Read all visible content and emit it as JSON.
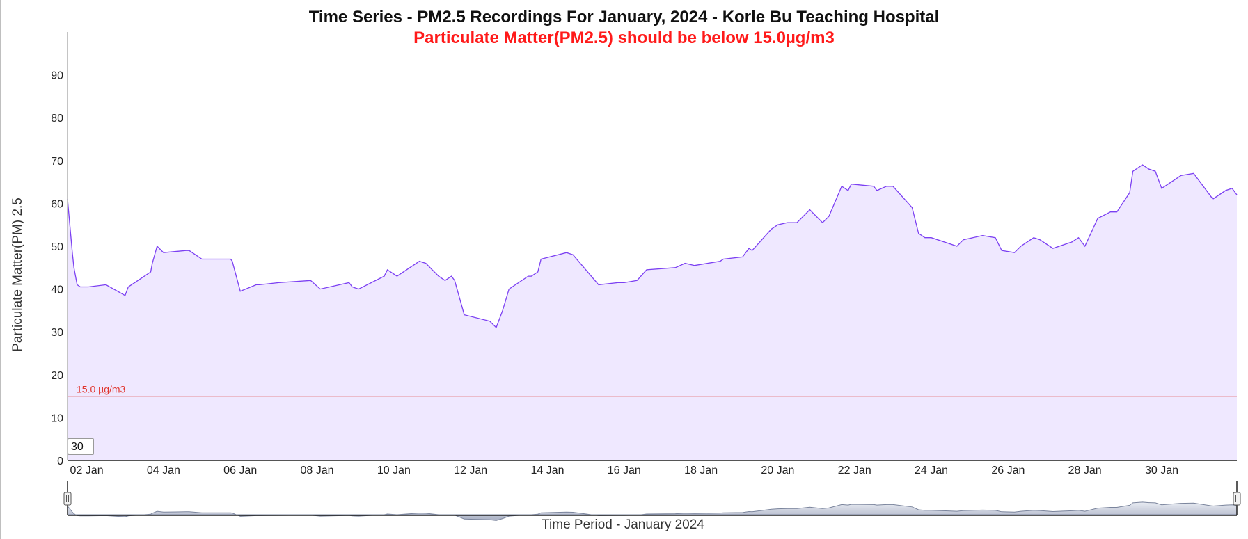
{
  "title": "Time Series - PM2.5 Recordings For January, 2024 - Korle Bu Teaching Hospital",
  "subtitle": "Particulate Matter(PM2.5) should be below 15.0µg/m3",
  "zoom_value": "30",
  "colors": {
    "line": "#7b3ff2",
    "fill": "#efe8ff",
    "threshold": "#e0342c",
    "subtitle": "#ff1a1a",
    "navigator_fill": "#a9b0c4"
  },
  "chart_data": {
    "type": "area",
    "title": "Time Series - PM2.5 Recordings For January, 2024 - Korle Bu Teaching Hospital",
    "subtitle": "Particulate Matter(PM2.5) should be below 15.0µg/m3",
    "xlabel": "Time Period - January 2024",
    "ylabel": "Particulate Matter(PM) 2.5",
    "xlim": [
      "2024-01-01T12:00",
      "2024-01-31T23:00"
    ],
    "ylim": [
      0,
      100
    ],
    "yticks": [
      0,
      10,
      20,
      30,
      40,
      50,
      60,
      70,
      80,
      90
    ],
    "xtick_labels": [
      "02 Jan",
      "04 Jan",
      "06 Jan",
      "08 Jan",
      "10 Jan",
      "12 Jan",
      "14 Jan",
      "16 Jan",
      "18 Jan",
      "20 Jan",
      "22 Jan",
      "24 Jan",
      "26 Jan",
      "28 Jan",
      "30 Jan"
    ],
    "grid": false,
    "threshold": {
      "value": 15.0,
      "label": "15.0 µg/m3"
    },
    "series": [
      {
        "x": [
          "2024-01-01T12:00",
          "2024-01-01T15:00",
          "2024-01-01T16:00",
          "2024-01-01T18:00",
          "2024-01-01T20:00",
          "2024-01-01T22:00",
          "2024-01-02T01:00",
          "2024-01-02T12:00",
          "2024-01-03T00:00",
          "2024-01-03T02:00",
          "2024-01-03T04:00",
          "2024-01-03T06:00",
          "2024-01-03T16:00",
          "2024-01-03T17:00",
          "2024-01-03T20:00",
          "2024-01-04T00:00",
          "2024-01-04T14:00",
          "2024-01-04T16:00",
          "2024-01-05T00:00",
          "2024-01-05T18:00",
          "2024-01-05T19:00",
          "2024-01-06T00:00",
          "2024-01-06T10:00",
          "2024-01-06T12:00",
          "2024-01-07T00:00",
          "2024-01-07T20:00",
          "2024-01-08T02:00",
          "2024-01-08T20:00",
          "2024-01-08T22:00",
          "2024-01-09T02:00",
          "2024-01-09T18:00",
          "2024-01-09T20:00",
          "2024-01-10T02:00",
          "2024-01-10T16:00",
          "2024-01-10T20:00",
          "2024-01-11T00:00",
          "2024-01-11T04:00",
          "2024-01-11T08:00",
          "2024-01-11T12:00",
          "2024-01-11T14:00",
          "2024-01-11T20:00",
          "2024-01-12T12:00",
          "2024-01-12T16:00",
          "2024-01-12T20:00",
          "2024-01-13T00:00",
          "2024-01-13T12:00",
          "2024-01-13T14:00",
          "2024-01-13T18:00",
          "2024-01-13T20:00",
          "2024-01-14T12:00",
          "2024-01-14T16:00",
          "2024-01-15T08:00",
          "2024-01-15T20:00",
          "2024-01-16T00:00",
          "2024-01-16T08:00",
          "2024-01-16T14:00",
          "2024-01-17T08:00",
          "2024-01-17T14:00",
          "2024-01-17T20:00",
          "2024-01-18T12:00",
          "2024-01-18T14:00",
          "2024-01-19T02:00",
          "2024-01-19T06:00",
          "2024-01-19T08:00",
          "2024-01-19T20:00",
          "2024-01-20T00:00",
          "2024-01-20T06:00",
          "2024-01-20T12:00",
          "2024-01-20T20:00",
          "2024-01-21T00:00",
          "2024-01-21T04:00",
          "2024-01-21T08:00",
          "2024-01-21T16:00",
          "2024-01-21T20:00",
          "2024-01-21T22:00",
          "2024-01-22T12:00",
          "2024-01-22T14:00",
          "2024-01-22T20:00",
          "2024-01-23T00:00",
          "2024-01-23T12:00",
          "2024-01-23T16:00",
          "2024-01-23T20:00",
          "2024-01-24T00:00",
          "2024-01-24T12:00",
          "2024-01-24T16:00",
          "2024-01-24T20:00",
          "2024-01-25T08:00",
          "2024-01-25T16:00",
          "2024-01-25T20:00",
          "2024-01-26T04:00",
          "2024-01-26T08:00",
          "2024-01-26T16:00",
          "2024-01-26T20:00",
          "2024-01-27T04:00",
          "2024-01-27T08:00",
          "2024-01-27T16:00",
          "2024-01-27T20:00",
          "2024-01-28T00:00",
          "2024-01-28T08:00",
          "2024-01-28T16:00",
          "2024-01-28T20:00",
          "2024-01-29T04:00",
          "2024-01-29T06:00",
          "2024-01-29T12:00",
          "2024-01-29T16:00",
          "2024-01-29T20:00",
          "2024-01-30T00:00",
          "2024-01-30T04:00",
          "2024-01-30T12:00",
          "2024-01-30T20:00",
          "2024-01-31T08:00",
          "2024-01-31T16:00",
          "2024-01-31T20:00",
          "2024-01-31T23:00"
        ],
        "values": [
          61.0,
          48.5,
          45.0,
          41.0,
          40.5,
          40.5,
          40.5,
          41.0,
          38.5,
          40.5,
          41.0,
          41.5,
          44.0,
          46.0,
          50.0,
          48.5,
          49.0,
          49.0,
          47.0,
          47.0,
          46.5,
          39.5,
          41.0,
          41.0,
          41.5,
          42.0,
          40.0,
          41.5,
          40.5,
          40.0,
          43.0,
          44.5,
          43.0,
          46.5,
          46.0,
          44.5,
          43.0,
          42.0,
          43.0,
          42.0,
          34.0,
          32.5,
          31.0,
          35.0,
          40.0,
          43.0,
          43.0,
          44.0,
          47.0,
          48.5,
          48.0,
          41.0,
          41.5,
          41.5,
          42.0,
          44.5,
          45.0,
          46.0,
          45.5,
          46.5,
          47.0,
          47.5,
          49.5,
          49.0,
          54.0,
          55.0,
          55.5,
          55.5,
          58.5,
          57.0,
          55.5,
          57.0,
          64.0,
          63.0,
          64.5,
          64.0,
          63.0,
          64.0,
          64.0,
          59.0,
          53.0,
          52.0,
          52.0,
          50.5,
          50.0,
          51.5,
          52.5,
          52.0,
          49.0,
          48.5,
          50.0,
          52.0,
          51.5,
          49.5,
          50.0,
          51.0,
          52.0,
          50.0,
          56.5,
          58.0,
          58.0,
          62.5,
          67.5,
          69.0,
          68.0,
          67.5,
          63.5,
          64.5,
          66.5,
          67.0,
          61.0,
          63.0,
          63.5,
          62.0
        ]
      }
    ]
  }
}
